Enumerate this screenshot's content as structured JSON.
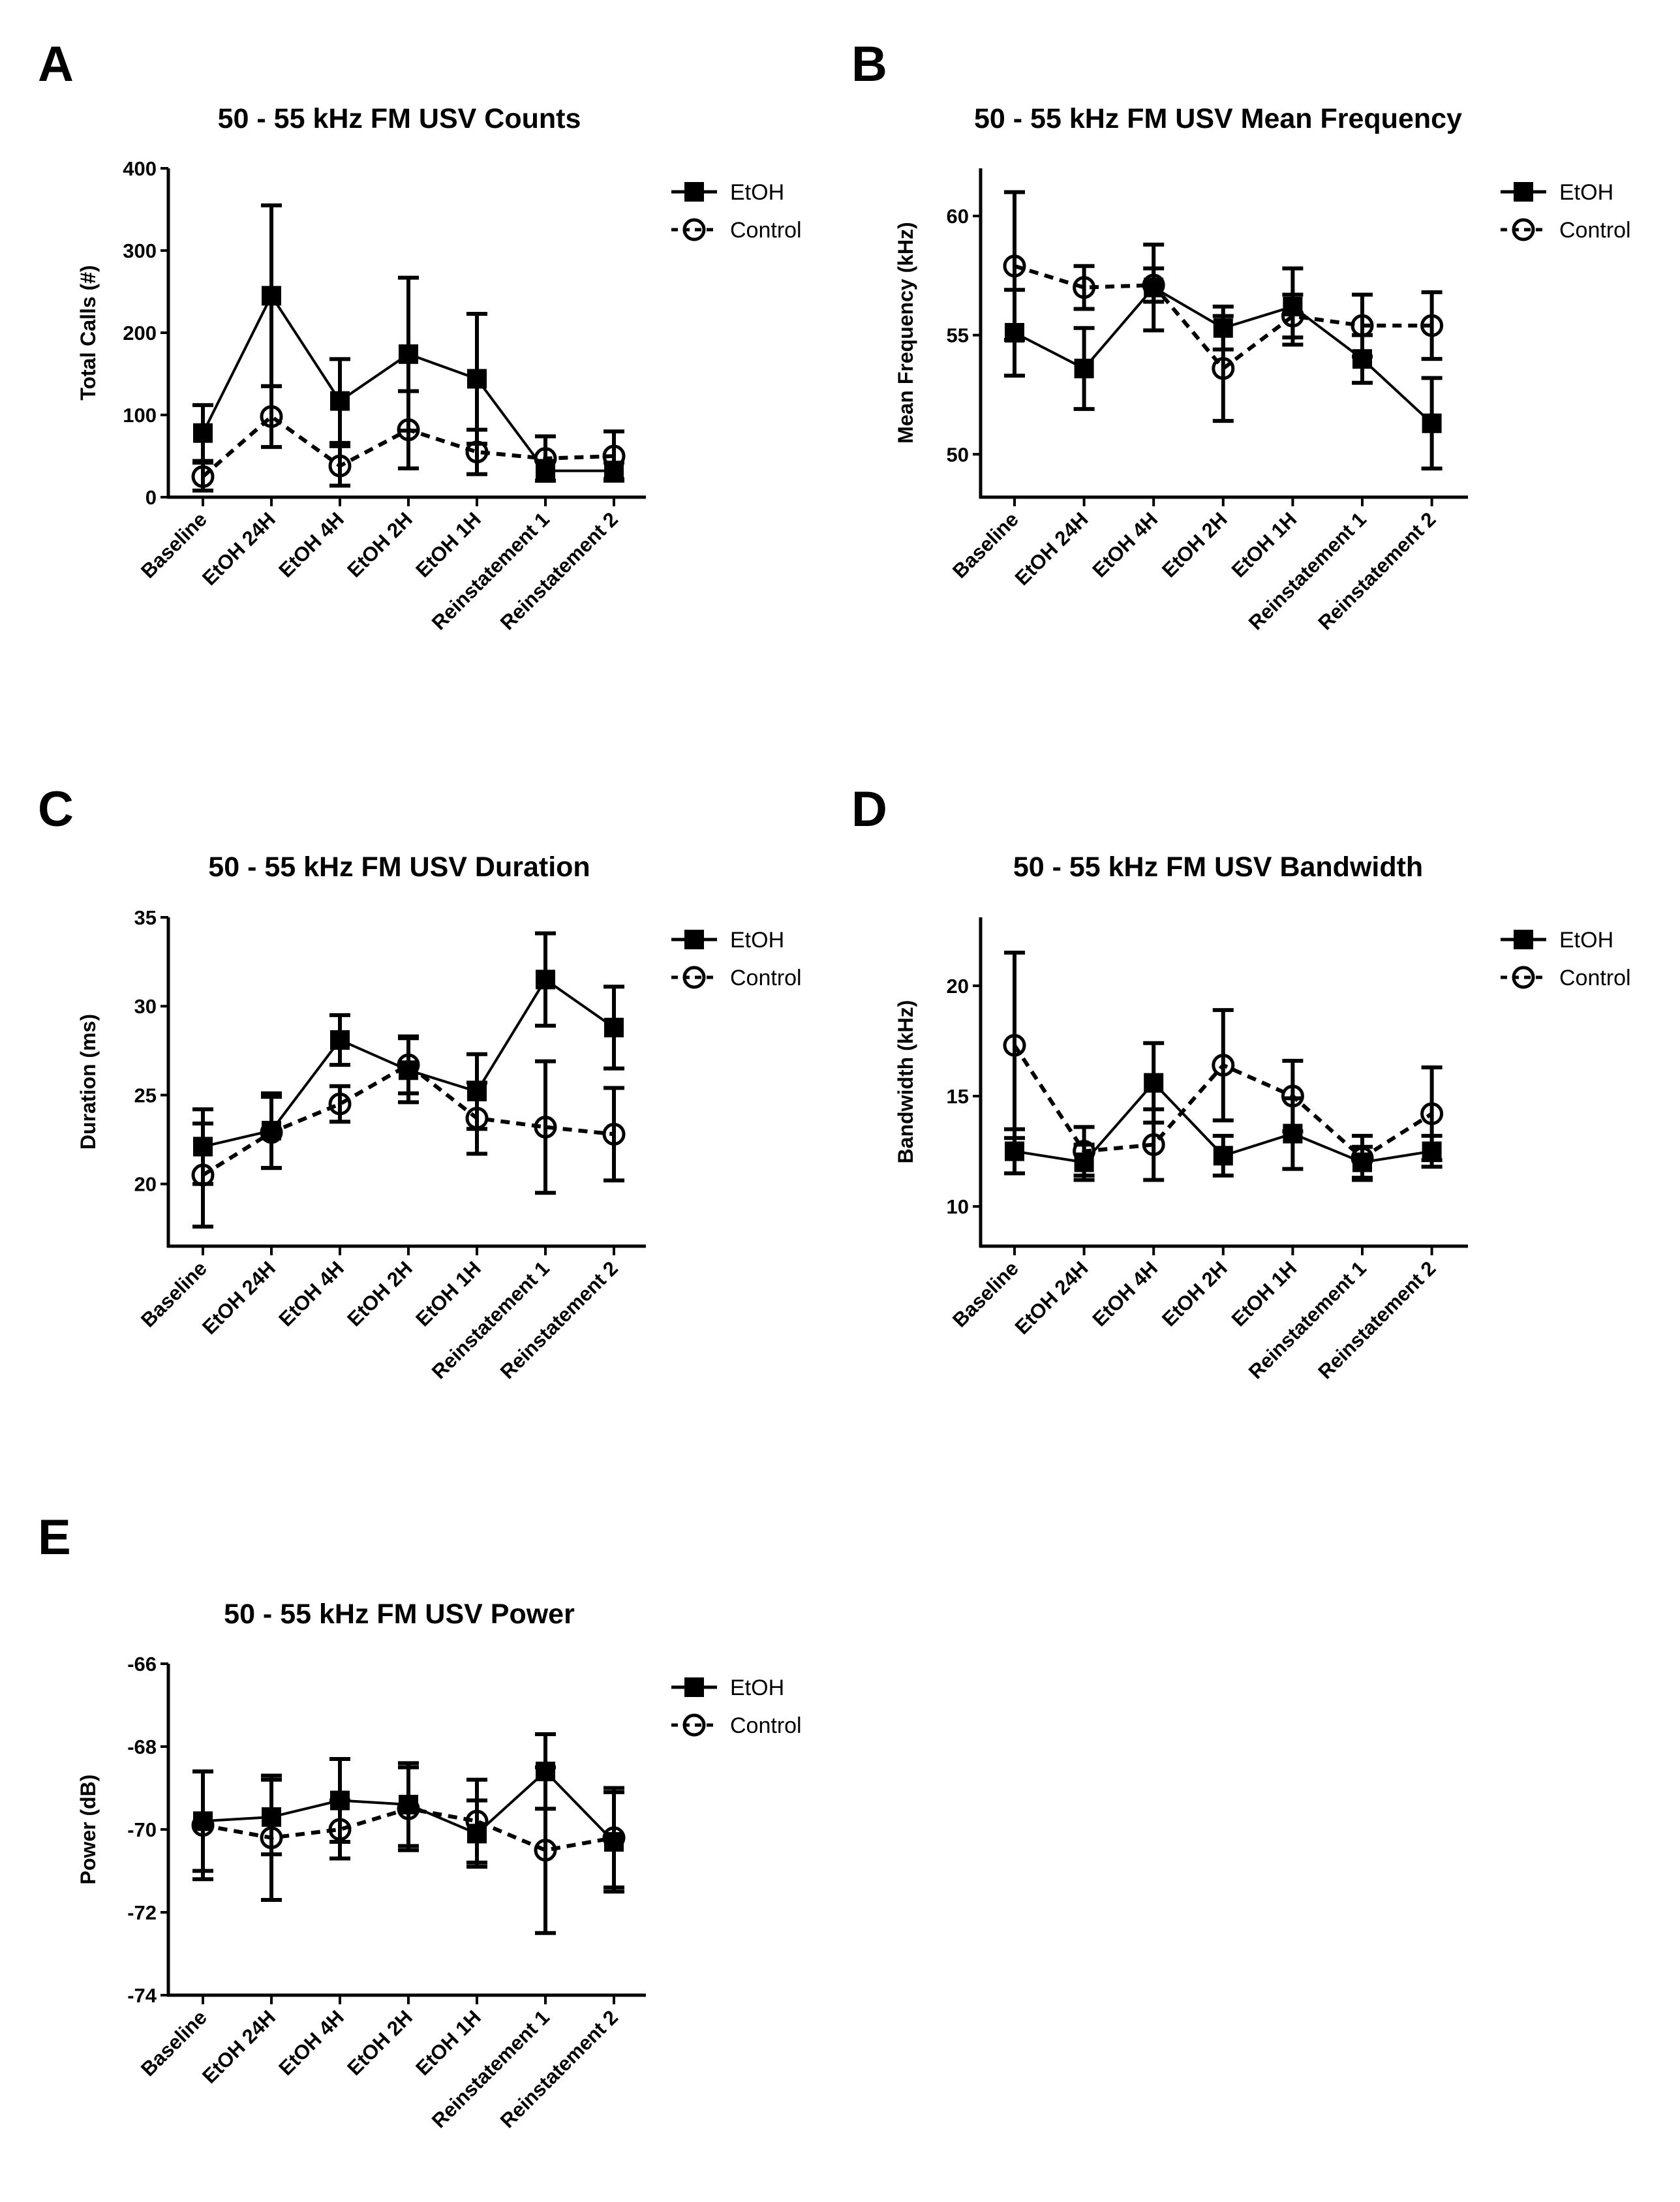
{
  "legend": {
    "etoh": "EtOH",
    "control": "Control"
  },
  "chart_data": [
    {
      "panel": "A",
      "type": "line",
      "title": "50 - 55 kHz FM USV Counts",
      "ylabel": "Total Calls (#)",
      "xlabel": "",
      "categories": [
        "Baseline",
        "EtOH 24H",
        "EtOH 4H",
        "EtOH 2H",
        "EtOH 1H",
        "Reinstatement 1",
        "Reinstatement 2"
      ],
      "ylim": [
        0,
        400
      ],
      "yticks": [
        0,
        100,
        200,
        300,
        400
      ],
      "legend_position": "right",
      "series": [
        {
          "name": "EtOH",
          "marker": "filled-square",
          "line": "solid",
          "values": [
            78,
            245,
            117,
            174,
            144,
            32,
            32
          ],
          "error": [
            34,
            110,
            51,
            93,
            79,
            12,
            10
          ]
        },
        {
          "name": "Control",
          "marker": "open-circle",
          "line": "dashed",
          "values": [
            25,
            98,
            38,
            82,
            55,
            47,
            50
          ],
          "error": [
            17,
            37,
            24,
            47,
            27,
            27,
            30
          ]
        }
      ]
    },
    {
      "panel": "B",
      "type": "line",
      "title": "50 - 55 kHz FM USV Mean Frequency",
      "ylabel": "Mean Frequency (kHz)",
      "xlabel": "",
      "categories": [
        "Baseline",
        "EtOH 24H",
        "EtOH 4H",
        "EtOH 2H",
        "EtOH 1H",
        "Reinstatement 1",
        "Reinstatement 2"
      ],
      "ylim": [
        48.2,
        62
      ],
      "yticks": [
        50,
        55,
        60
      ],
      "legend_position": "right",
      "series": [
        {
          "name": "EtOH",
          "marker": "filled-square",
          "line": "solid",
          "values": [
            55.1,
            53.6,
            57.0,
            55.3,
            56.2,
            54.0,
            51.3
          ],
          "error": [
            1.8,
            1.7,
            1.8,
            0.9,
            1.6,
            1.0,
            1.9
          ]
        },
        {
          "name": "Control",
          "marker": "open-circle",
          "line": "dashed",
          "values": [
            57.9,
            57.0,
            57.1,
            53.6,
            55.8,
            55.4,
            55.4
          ],
          "error": [
            3.1,
            0.9,
            0.7,
            2.2,
            0.9,
            1.3,
            1.4
          ]
        }
      ]
    },
    {
      "panel": "C",
      "type": "line",
      "title": "50 - 55 kHz FM USV Duration",
      "ylabel": "Duration (ms)",
      "xlabel": "",
      "categories": [
        "Baseline",
        "EtOH 24H",
        "EtOH 4H",
        "EtOH 2H",
        "EtOH 1H",
        "Reinstatement 1",
        "Reinstatement 2"
      ],
      "ylim": [
        16.5,
        35
      ],
      "yticks": [
        20,
        25,
        30,
        35
      ],
      "legend_position": "right",
      "series": [
        {
          "name": "EtOH",
          "marker": "filled-square",
          "line": "solid",
          "values": [
            22.1,
            23.0,
            28.1,
            26.4,
            25.2,
            31.5,
            28.8
          ],
          "error": [
            2.1,
            2.1,
            1.4,
            1.8,
            2.1,
            2.6,
            2.3
          ]
        },
        {
          "name": "Control",
          "marker": "open-circle",
          "line": "dashed",
          "values": [
            20.5,
            22.9,
            24.5,
            26.7,
            23.7,
            23.2,
            22.8
          ],
          "error": [
            2.9,
            2.0,
            1.0,
            1.6,
            2.0,
            3.7,
            2.6
          ]
        }
      ]
    },
    {
      "panel": "D",
      "type": "line",
      "title": "50 - 55 kHz FM USV Bandwidth",
      "ylabel": "Bandwidth (kHz)",
      "xlabel": "",
      "categories": [
        "Baseline",
        "EtOH 24H",
        "EtOH 4H",
        "EtOH 2H",
        "EtOH 1H",
        "Reinstatement 1",
        "Reinstatement 2"
      ],
      "ylim": [
        8.2,
        23.1
      ],
      "yticks": [
        10,
        15,
        20
      ],
      "legend_position": "right",
      "series": [
        {
          "name": "EtOH",
          "marker": "filled-square",
          "line": "solid",
          "values": [
            12.5,
            12.0,
            15.6,
            12.3,
            13.3,
            12.0,
            12.5
          ],
          "error": [
            1.0,
            0.8,
            1.8,
            0.9,
            1.6,
            0.7,
            0.7
          ]
        },
        {
          "name": "Control",
          "marker": "open-circle",
          "line": "dashed",
          "values": [
            17.3,
            12.5,
            12.8,
            16.4,
            15.0,
            12.2,
            14.2
          ],
          "error": [
            4.2,
            1.1,
            1.6,
            2.5,
            1.6,
            1.0,
            2.1
          ]
        }
      ]
    },
    {
      "panel": "E",
      "type": "line",
      "title": "50 - 55 kHz FM USV Power",
      "ylabel": "Power (dB)",
      "xlabel": "",
      "categories": [
        "Baseline",
        "EtOH 24H",
        "EtOH 4H",
        "EtOH 2H",
        "EtOH 1H",
        "Reinstatement 1",
        "Reinstatement 2"
      ],
      "ylim": [
        -74,
        -66
      ],
      "yticks": [
        -74,
        -72,
        -70,
        -68,
        -66
      ],
      "legend_position": "right",
      "series": [
        {
          "name": "EtOH",
          "marker": "filled-square",
          "line": "solid",
          "values": [
            -69.8,
            -69.7,
            -69.3,
            -69.4,
            -70.1,
            -68.6,
            -70.3
          ],
          "error": [
            1.2,
            0.9,
            1.0,
            1.0,
            0.8,
            0.9,
            1.2
          ]
        },
        {
          "name": "Control",
          "marker": "open-circle",
          "line": "dashed",
          "values": [
            -69.9,
            -70.2,
            -70.0,
            -69.5,
            -69.8,
            -70.5,
            -70.2
          ],
          "error": [
            1.3,
            1.5,
            0.7,
            1.0,
            1.0,
            2.0,
            1.2
          ]
        }
      ]
    }
  ]
}
